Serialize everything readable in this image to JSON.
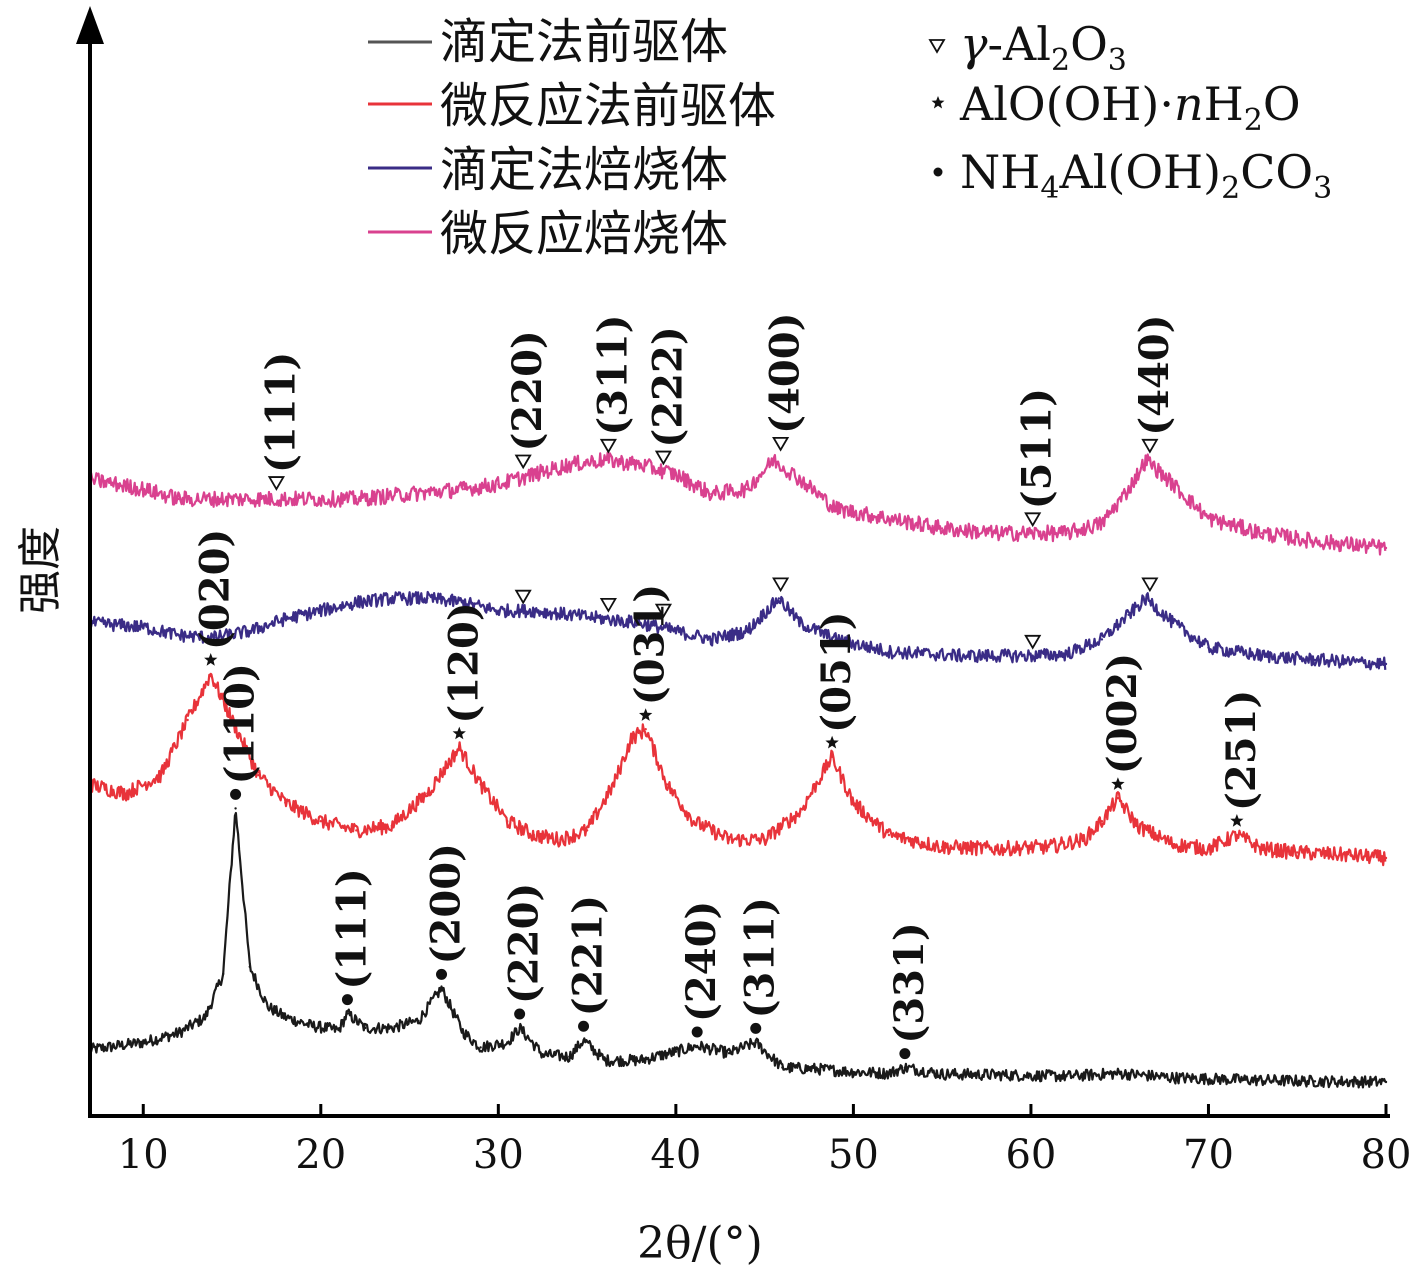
{
  "chart_data": {
    "type": "line",
    "xlabel": "2θ/(°)",
    "ylabel": "强度",
    "xlim": [
      7,
      80
    ],
    "xticks": [
      10,
      20,
      30,
      40,
      50,
      60,
      70,
      80
    ],
    "y_ticks_shown": false,
    "legend": [
      {
        "name": "滴定法前驱体",
        "color": "#555555"
      },
      {
        "name": "微反应法前驱体",
        "color": "#e8333a"
      },
      {
        "name": "滴定法焙烧体",
        "color": "#3a2c86"
      },
      {
        "name": "微反应焙烧体",
        "color": "#d9418f"
      }
    ],
    "marker_legend": [
      {
        "symbol": "triangle",
        "label": "γ-Al2O3"
      },
      {
        "symbol": "star",
        "label": "AlO(OH)·nH2O"
      },
      {
        "symbol": "dot",
        "label": "NH4Al(OH)2CO3"
      }
    ],
    "series": [
      {
        "name": "滴定法前驱体",
        "color": "#1a1a1a",
        "x": [
          7,
          10,
          12,
          13.5,
          14.5,
          15.2,
          16,
          17,
          18,
          19.5,
          21,
          21.5,
          22.5,
          24,
          25.5,
          26.8,
          28,
          29,
          30.5,
          31.2,
          32.5,
          34,
          34.8,
          36,
          38,
          40,
          41.2,
          43,
          44.5,
          46,
          48,
          50,
          52,
          52.9,
          55,
          58,
          62,
          65,
          68,
          72,
          76,
          80
        ],
        "y": [
          4.5,
          5.5,
          6.8,
          9.0,
          15.0,
          38.0,
          16.0,
          10.5,
          9.0,
          7.8,
          7.2,
          9.5,
          7.5,
          7.5,
          8.5,
          13.0,
          7.0,
          4.8,
          5.5,
          7.5,
          3.8,
          3.5,
          5.8,
          3.0,
          3.0,
          4.2,
          5.0,
          4.0,
          5.5,
          2.0,
          1.8,
          1.4,
          1.2,
          2.0,
          1.1,
          1.0,
          0.8,
          1.2,
          0.6,
          0.3,
          0.1,
          0.0
        ]
      },
      {
        "name": "微反应法前驱体",
        "color": "#e8333a",
        "x": [
          7,
          9,
          11,
          12.5,
          13.8,
          15,
          16.5,
          18,
          20,
          22,
          24,
          26,
          27.8,
          29,
          30.5,
          32,
          33.5,
          35,
          36.5,
          37.5,
          38.3,
          39.5,
          41,
          43,
          45,
          47,
          48.8,
          50,
          52,
          55,
          58,
          61,
          63,
          64,
          64.9,
          66,
          68,
          70,
          71.6,
          73,
          75,
          78,
          80
        ],
        "y": [
          8.0,
          7.0,
          9.0,
          15.0,
          20.0,
          15.0,
          9.0,
          6.0,
          4.0,
          3.0,
          3.5,
          7.0,
          12.0,
          8.0,
          4.0,
          2.5,
          2.0,
          3.0,
          8.0,
          13.0,
          14.0,
          8.0,
          4.0,
          2.0,
          2.0,
          5.0,
          11.0,
          6.0,
          2.5,
          1.2,
          1.0,
          1.2,
          2.0,
          4.0,
          6.5,
          3.5,
          1.5,
          1.0,
          2.5,
          1.0,
          0.6,
          0.3,
          0.0
        ]
      },
      {
        "name": "滴定法焙烧体",
        "color": "#3a2c86",
        "x": [
          7,
          10,
          12,
          14,
          16,
          18,
          20,
          22,
          24,
          26,
          28,
          30,
          32,
          34,
          36,
          38,
          40,
          42,
          44,
          45.8,
          47,
          49,
          52,
          56,
          60,
          62,
          64,
          65.5,
          66.5,
          68,
          70,
          73,
          76,
          80
        ],
        "y": [
          5.0,
          4.5,
          3.5,
          3.2,
          4.0,
          5.5,
          6.5,
          7.5,
          8.0,
          8.0,
          7.5,
          6.5,
          6.5,
          6.0,
          5.5,
          5.0,
          4.0,
          3.0,
          4.0,
          8.0,
          5.0,
          3.0,
          1.5,
          1.0,
          1.0,
          1.2,
          3.0,
          6.0,
          8.0,
          5.0,
          2.0,
          1.0,
          0.5,
          0.0
        ]
      },
      {
        "name": "微反应焙烧体",
        "color": "#d9418f",
        "x": [
          7,
          10,
          12,
          15,
          18,
          20,
          22,
          25,
          28,
          30,
          32,
          34,
          36,
          38,
          40,
          42,
          44,
          45.5,
          47,
          49,
          52,
          55,
          58,
          60,
          62,
          64,
          65.5,
          66.5,
          68,
          70,
          73,
          76,
          80
        ],
        "y": [
          7.0,
          6.0,
          5.0,
          5.0,
          5.0,
          5.0,
          5.0,
          5.5,
          6.0,
          6.5,
          7.5,
          8.5,
          9.0,
          8.5,
          7.5,
          5.5,
          6.0,
          9.0,
          7.0,
          4.0,
          3.0,
          2.0,
          1.5,
          1.5,
          1.5,
          2.5,
          6.0,
          9.0,
          6.5,
          3.0,
          1.5,
          0.7,
          0.0
        ]
      }
    ],
    "annotations": [
      {
        "series": 3,
        "marker": "triangle",
        "peak": [
          17.5,
          5.2
        ],
        "label": "(111)"
      },
      {
        "series": 3,
        "marker": "triangle",
        "peak": [
          31.4,
          7.4
        ],
        "label": "(220)"
      },
      {
        "series": 3,
        "marker": "triangle",
        "peak": [
          36.2,
          9.0
        ],
        "label": "(311)"
      },
      {
        "series": 3,
        "marker": "triangle",
        "peak": [
          39.3,
          7.8
        ],
        "label": "(222)"
      },
      {
        "series": 3,
        "marker": "triangle",
        "peak": [
          45.9,
          9.2
        ],
        "label": "(400)"
      },
      {
        "series": 3,
        "marker": "triangle",
        "peak": [
          60.1,
          1.5
        ],
        "label": "(511)"
      },
      {
        "series": 3,
        "marker": "triangle",
        "peak": [
          66.7,
          9.0
        ],
        "label": "(440)"
      },
      {
        "series": 2,
        "marker": "triangle",
        "peak": [
          31.4,
          6.5
        ],
        "label": ""
      },
      {
        "series": 2,
        "marker": "triangle",
        "peak": [
          36.2,
          5.5
        ],
        "label": ""
      },
      {
        "series": 2,
        "marker": "triangle",
        "peak": [
          39.3,
          4.8
        ],
        "label": ""
      },
      {
        "series": 2,
        "marker": "triangle",
        "peak": [
          45.9,
          8.0
        ],
        "label": ""
      },
      {
        "series": 2,
        "marker": "triangle",
        "peak": [
          60.1,
          1.0
        ],
        "label": ""
      },
      {
        "series": 2,
        "marker": "triangle",
        "peak": [
          66.7,
          8.0
        ],
        "label": ""
      },
      {
        "series": 1,
        "marker": "star",
        "peak": [
          13.8,
          20.0
        ],
        "label": "(020)"
      },
      {
        "series": 1,
        "marker": "star",
        "peak": [
          27.8,
          12.0
        ],
        "label": "(120)"
      },
      {
        "series": 1,
        "marker": "star",
        "peak": [
          38.3,
          14.0
        ],
        "label": "(031)"
      },
      {
        "series": 1,
        "marker": "star",
        "peak": [
          48.8,
          11.0
        ],
        "label": "(051)"
      },
      {
        "series": 1,
        "marker": "star",
        "peak": [
          64.9,
          6.5
        ],
        "label": "(002)"
      },
      {
        "series": 1,
        "marker": "star",
        "peak": [
          71.6,
          2.5
        ],
        "label": "(251)"
      },
      {
        "series": 0,
        "marker": "dot",
        "peak": [
          15.2,
          38.0
        ],
        "label": "(110)"
      },
      {
        "series": 0,
        "marker": "dot",
        "peak": [
          21.5,
          9.5
        ],
        "label": "(111)"
      },
      {
        "series": 0,
        "marker": "dot",
        "peak": [
          26.8,
          13.0
        ],
        "label": "(200)"
      },
      {
        "series": 0,
        "marker": "dot",
        "peak": [
          31.2,
          7.5
        ],
        "label": "(220)"
      },
      {
        "series": 0,
        "marker": "dot",
        "peak": [
          34.8,
          5.8
        ],
        "label": "(221)"
      },
      {
        "series": 0,
        "marker": "dot",
        "peak": [
          41.2,
          5.0
        ],
        "label": "(240)"
      },
      {
        "series": 0,
        "marker": "dot",
        "peak": [
          44.5,
          5.5
        ],
        "label": "(311)"
      },
      {
        "series": 0,
        "marker": "dot",
        "peak": [
          52.9,
          2.0
        ],
        "label": "(331)"
      }
    ]
  }
}
